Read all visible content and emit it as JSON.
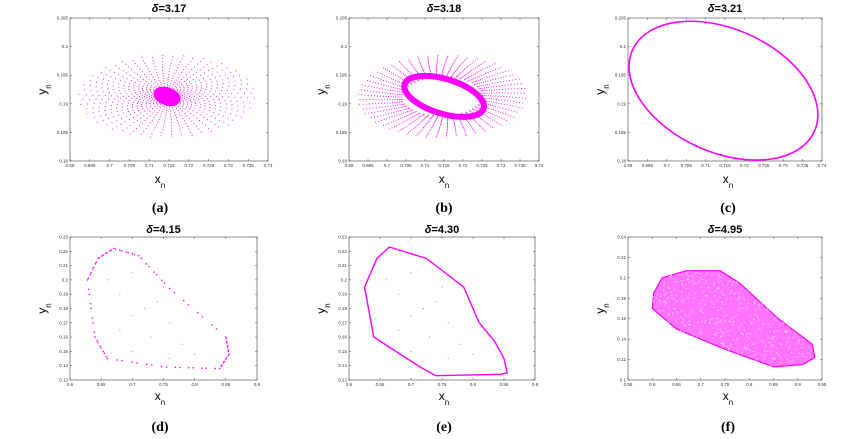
{
  "accent_color": "#ff00ff",
  "axis_labels": {
    "x_main": "x",
    "x_sub": "n",
    "y_main": "y",
    "y_sub": "n"
  },
  "chart_data": [
    {
      "type": "scatter",
      "caption": "(a)",
      "title_var": "δ",
      "title_val": "=3.17",
      "xlim": [
        0.69,
        0.74
      ],
      "ylim": [
        0.18,
        0.205
      ],
      "xticks": [
        "0.69",
        "0.695",
        "0.7",
        "0.705",
        "0.71",
        "0.715",
        "0.72",
        "0.725",
        "0.73",
        "0.735",
        "0.74"
      ],
      "yticks": [
        "0.18",
        "0.185",
        "0.19",
        "0.195",
        "0.2",
        "0.205"
      ],
      "pattern": "spiral-sink",
      "center": [
        0.7145,
        0.1913
      ],
      "radii": [
        0.022,
        0.0072
      ],
      "tilt": -0.3,
      "hole": 0.0
    },
    {
      "type": "scatter",
      "caption": "(b)",
      "title_var": "δ",
      "title_val": "=3.18",
      "xlim": [
        0.69,
        0.74
      ],
      "ylim": [
        0.18,
        0.205
      ],
      "xticks": [
        "0.69",
        "0.695",
        "0.7",
        "0.705",
        "0.71",
        "0.715",
        "0.72",
        "0.725",
        "0.73",
        "0.735",
        "0.74"
      ],
      "yticks": [
        "0.18",
        "0.185",
        "0.19",
        "0.195",
        "0.2",
        "0.205"
      ],
      "pattern": "spiral-ring",
      "center": [
        0.7145,
        0.1913
      ],
      "radii": [
        0.022,
        0.0072
      ],
      "tilt": -0.3,
      "hole": 0.47
    },
    {
      "type": "line",
      "caption": "(c)",
      "title_var": "δ",
      "title_val": "=3.21",
      "xlim": [
        0.69,
        0.74
      ],
      "ylim": [
        0.18,
        0.205
      ],
      "xticks": [
        "0.69",
        "0.695",
        "0.7",
        "0.705",
        "0.71",
        "0.715",
        "0.72",
        "0.725",
        "0.73",
        "0.735",
        "0.74"
      ],
      "yticks": [
        "0.18",
        "0.185",
        "0.19",
        "0.195",
        "0.2",
        "0.205"
      ],
      "pattern": "ellipse",
      "center": [
        0.7146,
        0.1923
      ],
      "radii": [
        0.0262,
        0.0098
      ],
      "tilt": -0.3
    },
    {
      "type": "scatter",
      "caption": "(d)",
      "title_var": "δ",
      "title_val": "=4.15",
      "xlim": [
        0.6,
        0.9
      ],
      "ylim": [
        0.13,
        0.23
      ],
      "xticks": [
        "0.6",
        "0.65",
        "0.7",
        "0.75",
        "0.8",
        "0.85",
        "0.9"
      ],
      "yticks": [
        "0.13",
        "0.14",
        "0.15",
        "0.16",
        "0.17",
        "0.18",
        "0.19",
        "0.2",
        "0.21",
        "0.22",
        "0.23"
      ],
      "pattern": "dotted-polygon",
      "polygon": [
        [
          0.67,
          0.222
        ],
        [
          0.71,
          0.217
        ],
        [
          0.76,
          0.194
        ],
        [
          0.85,
          0.16
        ],
        [
          0.855,
          0.148
        ],
        [
          0.84,
          0.138
        ],
        [
          0.755,
          0.139
        ],
        [
          0.66,
          0.145
        ],
        [
          0.64,
          0.16
        ],
        [
          0.628,
          0.2
        ],
        [
          0.645,
          0.215
        ]
      ],
      "interior": [
        [
          0.66,
          0.2
        ],
        [
          0.7,
          0.205
        ],
        [
          0.68,
          0.19
        ],
        [
          0.72,
          0.18
        ],
        [
          0.75,
          0.195
        ],
        [
          0.7,
          0.175
        ],
        [
          0.73,
          0.16
        ],
        [
          0.76,
          0.17
        ],
        [
          0.78,
          0.155
        ],
        [
          0.7,
          0.15
        ],
        [
          0.76,
          0.145
        ],
        [
          0.8,
          0.148
        ],
        [
          0.68,
          0.165
        ],
        [
          0.74,
          0.185
        ]
      ]
    },
    {
      "type": "line",
      "caption": "(e)",
      "title_var": "δ",
      "title_val": "=4.30",
      "xlim": [
        0.6,
        0.9
      ],
      "ylim": [
        0.13,
        0.23
      ],
      "xticks": [
        "0.6",
        "0.65",
        "0.7",
        "0.75",
        "0.8",
        "0.85",
        "0.9"
      ],
      "yticks": [
        "0.13",
        "0.14",
        "0.15",
        "0.16",
        "0.17",
        "0.18",
        "0.19",
        "0.2",
        "0.21",
        "0.22",
        "0.23"
      ],
      "pattern": "polygon",
      "polygon": [
        [
          0.665,
          0.223
        ],
        [
          0.725,
          0.215
        ],
        [
          0.785,
          0.195
        ],
        [
          0.81,
          0.17
        ],
        [
          0.835,
          0.157
        ],
        [
          0.85,
          0.145
        ],
        [
          0.855,
          0.135
        ],
        [
          0.845,
          0.134
        ],
        [
          0.74,
          0.133
        ],
        [
          0.715,
          0.139
        ],
        [
          0.64,
          0.16
        ],
        [
          0.625,
          0.195
        ],
        [
          0.645,
          0.215
        ]
      ],
      "interior": [
        [
          0.66,
          0.2
        ],
        [
          0.7,
          0.205
        ],
        [
          0.68,
          0.19
        ],
        [
          0.72,
          0.18
        ],
        [
          0.75,
          0.195
        ],
        [
          0.7,
          0.175
        ],
        [
          0.73,
          0.16
        ],
        [
          0.76,
          0.17
        ],
        [
          0.78,
          0.155
        ],
        [
          0.7,
          0.15
        ],
        [
          0.76,
          0.145
        ],
        [
          0.8,
          0.148
        ],
        [
          0.68,
          0.165
        ],
        [
          0.74,
          0.185
        ]
      ]
    },
    {
      "type": "scatter",
      "caption": "(f)",
      "title_var": "δ",
      "title_val": "=4.95",
      "xlim": [
        0.55,
        0.95
      ],
      "ylim": [
        0.1,
        0.24
      ],
      "xticks": [
        "0.55",
        "0.6",
        "0.65",
        "0.7",
        "0.75",
        "0.8",
        "0.85",
        "0.9",
        "0.95"
      ],
      "yticks": [
        "0.1",
        "0.12",
        "0.14",
        "0.16",
        "0.18",
        "0.2",
        "0.22",
        "0.24"
      ],
      "pattern": "filled-polygon",
      "polygon": [
        [
          0.67,
          0.207
        ],
        [
          0.74,
          0.207
        ],
        [
          0.78,
          0.195
        ],
        [
          0.86,
          0.16
        ],
        [
          0.93,
          0.135
        ],
        [
          0.935,
          0.122
        ],
        [
          0.91,
          0.115
        ],
        [
          0.85,
          0.113
        ],
        [
          0.75,
          0.13
        ],
        [
          0.65,
          0.15
        ],
        [
          0.6,
          0.17
        ],
        [
          0.603,
          0.185
        ],
        [
          0.62,
          0.2
        ]
      ]
    }
  ]
}
